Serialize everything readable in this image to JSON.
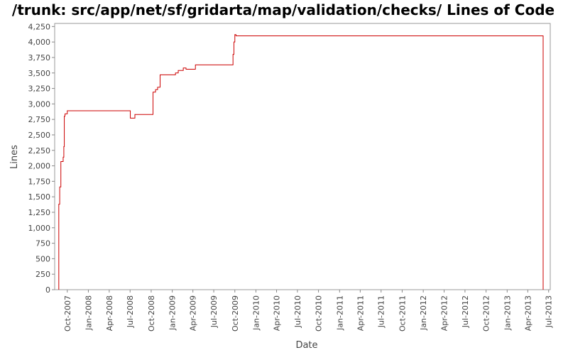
{
  "chart_data": {
    "type": "line",
    "title": "/trunk: src/app/net/sf/gridarta/map/validation/checks/ Lines of Code",
    "xlabel": "Date",
    "ylabel": "Lines",
    "ylim": [
      0,
      4300
    ],
    "xlim": [
      "2007-08-07",
      "2013-07-08"
    ],
    "y_ticks": [
      0,
      250,
      500,
      750,
      1000,
      1250,
      1500,
      1750,
      2000,
      2250,
      2500,
      2750,
      3000,
      3250,
      3500,
      3750,
      4000,
      4250
    ],
    "y_tick_labels": [
      "0",
      "250",
      "500",
      "750",
      "1,000",
      "1,250",
      "1,500",
      "1,750",
      "2,000",
      "2,250",
      "2,500",
      "2,750",
      "3,000",
      "3,250",
      "3,500",
      "3,750",
      "4,000",
      "4,250"
    ],
    "x_ticks": [
      "2007-10-01",
      "2008-01-01",
      "2008-04-01",
      "2008-07-01",
      "2008-10-01",
      "2009-01-01",
      "2009-04-01",
      "2009-07-01",
      "2009-10-01",
      "2010-01-01",
      "2010-04-01",
      "2010-07-01",
      "2010-10-01",
      "2011-01-01",
      "2011-04-01",
      "2011-07-01",
      "2011-10-01",
      "2012-01-01",
      "2012-04-01",
      "2012-07-01",
      "2012-10-01",
      "2013-01-01",
      "2013-04-01",
      "2013-07-01"
    ],
    "x_tick_labels": [
      "Oct-2007",
      "Jan-2008",
      "Apr-2008",
      "Jul-2008",
      "Oct-2008",
      "Jan-2009",
      "Apr-2009",
      "Jul-2009",
      "Oct-2009",
      "Jan-2010",
      "Apr-2010",
      "Jul-2010",
      "Oct-2010",
      "Jan-2011",
      "Apr-2011",
      "Jul-2011",
      "Oct-2011",
      "Jan-2012",
      "Apr-2012",
      "Jul-2012",
      "Oct-2012",
      "Jan-2013",
      "Apr-2013",
      "Jul-2013"
    ],
    "grid": false,
    "legend": "none",
    "line_color": "#cc0000",
    "series": [
      {
        "step": true,
        "points": [
          [
            "2007-08-25",
            0
          ],
          [
            "2007-08-25",
            1380
          ],
          [
            "2007-08-29",
            1380
          ],
          [
            "2007-08-29",
            1660
          ],
          [
            "2007-09-03",
            1660
          ],
          [
            "2007-09-03",
            2070
          ],
          [
            "2007-09-13",
            2070
          ],
          [
            "2007-09-13",
            2140
          ],
          [
            "2007-09-16",
            2140
          ],
          [
            "2007-09-16",
            2310
          ],
          [
            "2007-09-18",
            2310
          ],
          [
            "2007-09-18",
            2800
          ],
          [
            "2007-09-21",
            2800
          ],
          [
            "2007-09-21",
            2840
          ],
          [
            "2007-10-01",
            2840
          ],
          [
            "2007-10-01",
            2890
          ],
          [
            "2008-07-02",
            2890
          ],
          [
            "2008-07-02",
            2770
          ],
          [
            "2008-07-22",
            2770
          ],
          [
            "2008-07-22",
            2830
          ],
          [
            "2008-10-09",
            2830
          ],
          [
            "2008-10-09",
            3190
          ],
          [
            "2008-10-20",
            3190
          ],
          [
            "2008-10-20",
            3230
          ],
          [
            "2008-10-29",
            3230
          ],
          [
            "2008-10-29",
            3270
          ],
          [
            "2008-11-09",
            3270
          ],
          [
            "2008-11-09",
            3470
          ],
          [
            "2009-01-15",
            3470
          ],
          [
            "2009-01-15",
            3500
          ],
          [
            "2009-01-27",
            3500
          ],
          [
            "2009-01-27",
            3540
          ],
          [
            "2009-02-18",
            3540
          ],
          [
            "2009-02-18",
            3580
          ],
          [
            "2009-03-02",
            3580
          ],
          [
            "2009-03-02",
            3560
          ],
          [
            "2009-04-12",
            3560
          ],
          [
            "2009-04-12",
            3630
          ],
          [
            "2009-09-23",
            3630
          ],
          [
            "2009-09-23",
            3800
          ],
          [
            "2009-09-27",
            3800
          ],
          [
            "2009-09-27",
            4000
          ],
          [
            "2009-10-01",
            4000
          ],
          [
            "2009-10-01",
            4120
          ],
          [
            "2009-10-06",
            4120
          ],
          [
            "2009-10-06",
            4100
          ],
          [
            "2013-06-07",
            4100
          ],
          [
            "2013-06-07",
            0
          ]
        ]
      }
    ]
  }
}
